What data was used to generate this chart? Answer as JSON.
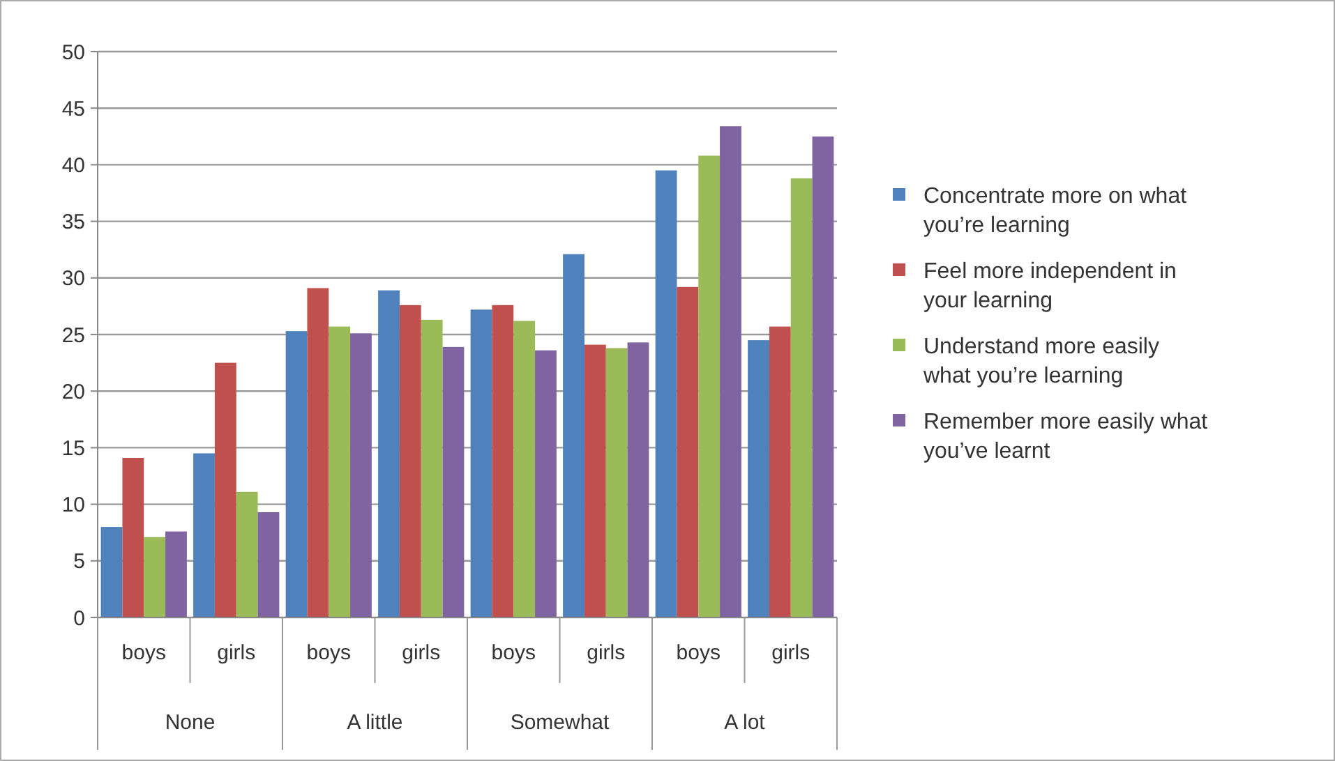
{
  "chart_data": {
    "type": "bar",
    "categories": [
      "boys",
      "girls",
      "boys",
      "girls",
      "boys",
      "girls",
      "boys",
      "girls"
    ],
    "annotations": [
      "None",
      "A little",
      "Somewhat",
      "A lot"
    ],
    "series": [
      {
        "name": "Concentrate more on what you’re learning",
        "color": "#4f81bd",
        "values": [
          8,
          14.5,
          25.3,
          28.9,
          27.2,
          32.1,
          39.5,
          24.5
        ]
      },
      {
        "name": "Feel more independent in your learning",
        "color": "#c0504d",
        "values": [
          14.1,
          22.5,
          29.1,
          27.6,
          27.6,
          24.1,
          29.2,
          25.7
        ]
      },
      {
        "name": "Understand more easily what you’re learning",
        "color": "#9bbb59",
        "values": [
          7.1,
          11.1,
          25.7,
          26.3,
          26.2,
          23.8,
          40.8,
          38.8
        ]
      },
      {
        "name": "Remember more easily what you’ve learnt",
        "color": "#8064a2",
        "values": [
          7.6,
          9.3,
          25.1,
          23.9,
          23.6,
          24.3,
          43.4,
          42.5
        ]
      }
    ],
    "ylim": [
      0,
      50
    ],
    "yticks": [
      0,
      5,
      10,
      15,
      20,
      25,
      30,
      35,
      40,
      45,
      50
    ],
    "grid": "y",
    "legend": "right"
  }
}
